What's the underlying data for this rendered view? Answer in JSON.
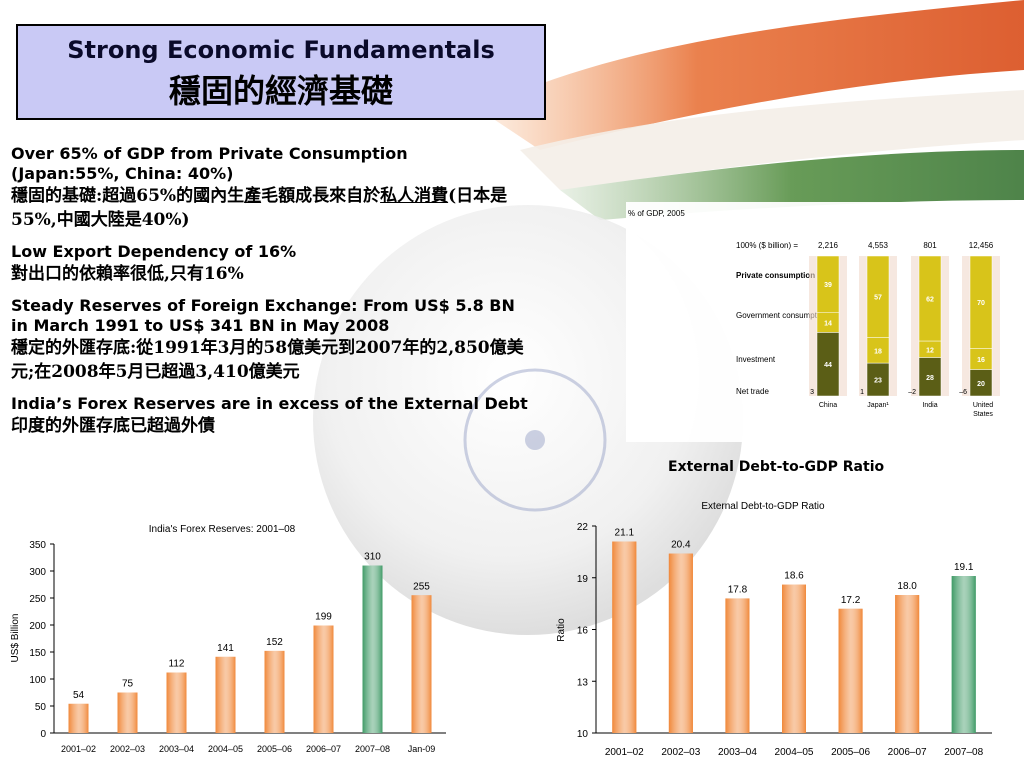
{
  "slide": {
    "title_en": "Strong Economic Fundamentals",
    "title_zh": "穩固的經濟基礎"
  },
  "bullets": [
    {
      "en_line1": "Over 65% of GDP from Private Consumption",
      "en_line2": "(Japan:55%, China: 40%)",
      "zh_prefix": "穩固的基礎:超過65%的國內生",
      "zh_under1": "產",
      "zh_mid": "毛額成長來自於",
      "zh_under2": "私人消費",
      "zh_suffix": "(日本是55%,中國大陸是40%)"
    },
    {
      "en": "Low Export Dependency of 16%",
      "zh": "對出口的依賴率很低,只有16%"
    },
    {
      "en": "Steady Reserves of Foreign Exchange: From US$ 5.8 BN in March 1991 to US$ 341 BN in May 2008",
      "zh": "穩定的外匯存底:從1991年3月的58億美元到2007年的2,850億美元;在2008年5月已超過3,410億美元"
    },
    {
      "en": "India’s Forex Reserves are in excess of the External Debt",
      "zh": "印度的外匯存底已超過外債"
    }
  ],
  "gdp_chart": {
    "title": "% of GDP, 2005",
    "row_label_total": "100% ($ billion) =",
    "row_labels": [
      "Private consumption",
      "Government consumption",
      "Investment",
      "Net trade"
    ],
    "countries": [
      {
        "name": "China",
        "total": "2,216",
        "private": "39",
        "government": "14",
        "investment": "44",
        "net": "3"
      },
      {
        "name": "Japan¹",
        "total": "4,553",
        "private": "57",
        "government": "18",
        "investment": "23",
        "net": "1"
      },
      {
        "name": "India",
        "total": "801",
        "private": "62",
        "government": "12",
        "investment": "28",
        "net": "–2"
      },
      {
        "name": "United States",
        "total": "12,456",
        "private": "70",
        "government": "16",
        "investment": "20",
        "net": "–6"
      }
    ],
    "colors": {
      "private": "#d8c41a",
      "government": "#c2a618",
      "investment": "#5b5e16",
      "stripe": "#f0d8cc"
    }
  },
  "external_debt_heading": "External Debt-to-GDP Ratio",
  "chart_data": [
    {
      "type": "bar",
      "title": "India's Forex Reserves: 2001–08",
      "ylabel": "US$ Billion",
      "xlabel": "",
      "categories": [
        "2001–02",
        "2002–03",
        "2003–04",
        "2004–05",
        "2005–06",
        "2006–07",
        "2007–08",
        "Jan-09"
      ],
      "values": [
        54,
        75,
        112,
        141,
        152,
        199,
        310,
        255
      ],
      "ylim": [
        0,
        350
      ],
      "yticks": [
        0,
        50,
        100,
        150,
        200,
        250,
        300,
        350
      ],
      "highlight_index": 6,
      "colors": {
        "bar": "#f0883a",
        "highlight": "#3f9a66"
      }
    },
    {
      "type": "bar",
      "title": "External Debt-to-GDP Ratio",
      "ylabel": "Ratio",
      "xlabel": "",
      "categories": [
        "2001–02",
        "2002–03",
        "2003–04",
        "2004–05",
        "2005–06",
        "2006–07",
        "2007–08"
      ],
      "values": [
        21.1,
        20.4,
        17.8,
        18.6,
        17.2,
        18.0,
        19.1
      ],
      "value_labels": [
        "21.1",
        "20.4",
        "17.8",
        "18.6",
        "17.2",
        "18.0",
        "19.1"
      ],
      "ylim": [
        10,
        22
      ],
      "yticks": [
        10,
        13,
        16,
        19,
        22
      ],
      "highlight_index": 6,
      "colors": {
        "bar": "#f0883a",
        "highlight": "#3f9a66"
      }
    }
  ]
}
